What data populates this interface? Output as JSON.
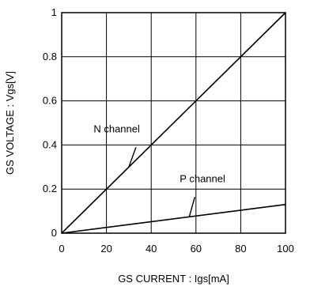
{
  "chart_data": {
    "type": "line",
    "title": "",
    "xlabel": "GS CURRENT : Igs[mA]",
    "ylabel": "GS VOLTAGE : Vgs[V]",
    "xlim": [
      0,
      100
    ],
    "ylim": [
      0,
      1
    ],
    "x_ticks": [
      0,
      20,
      40,
      60,
      80,
      100
    ],
    "y_ticks": [
      0,
      0.2,
      0.4,
      0.6,
      0.8,
      1
    ],
    "x_tick_labels": [
      "0",
      "20",
      "40",
      "60",
      "80",
      "100"
    ],
    "y_tick_labels": [
      "0",
      "0.2",
      "0.4",
      "0.6",
      "0.8",
      "1"
    ],
    "grid": true,
    "line_color": "#000000",
    "grid_color": "#000000",
    "series": [
      {
        "name": "N channel",
        "x": [
          0,
          100
        ],
        "y": [
          0,
          1.0
        ]
      },
      {
        "name": "P channel",
        "x": [
          0,
          100
        ],
        "y": [
          0,
          0.13
        ]
      }
    ],
    "annotations": [
      {
        "text": "N channel",
        "series": 0,
        "point_x": 30,
        "point_y": 0.3
      },
      {
        "text": "P channel",
        "series": 1,
        "point_x": 57,
        "point_y": 0.074
      }
    ]
  }
}
